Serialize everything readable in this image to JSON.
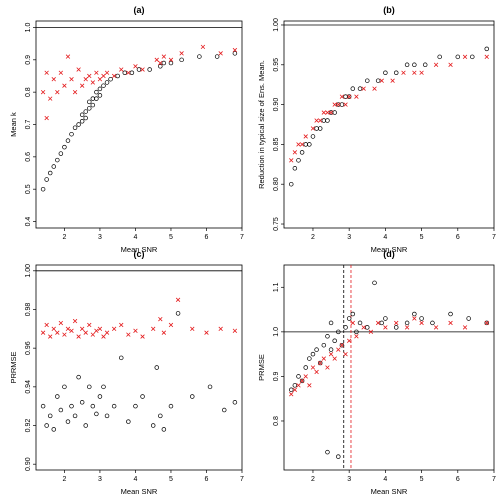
{
  "colors": {
    "black_series": "#000000",
    "red_series": "#e41a1c"
  },
  "chart_data": [
    {
      "title": "(a)",
      "type": "scatter",
      "xlabel": "Mean SNR",
      "ylabel": "Mean k",
      "xlim": [
        1.2,
        7.0
      ],
      "ylim": [
        0.38,
        1.02
      ],
      "xticks": [
        2,
        3,
        4,
        5,
        6,
        7
      ],
      "yticks": [
        0.4,
        0.5,
        0.6,
        0.7,
        0.8,
        0.9,
        1.0
      ],
      "hlines": [
        1.0
      ],
      "vlines": [],
      "series": [
        {
          "marker": "circle",
          "color": "#000000",
          "x": [
            1.4,
            1.5,
            1.6,
            1.7,
            1.8,
            1.9,
            2.0,
            2.1,
            2.2,
            2.3,
            2.4,
            2.5,
            2.5,
            2.6,
            2.6,
            2.7,
            2.7,
            2.8,
            2.8,
            2.9,
            2.9,
            3.0,
            3.0,
            3.1,
            3.2,
            3.3,
            3.5,
            3.7,
            3.9,
            4.1,
            4.4,
            4.7,
            4.8,
            5.0,
            5.3,
            5.8,
            6.3,
            6.8
          ],
          "y": [
            0.5,
            0.53,
            0.55,
            0.57,
            0.59,
            0.61,
            0.63,
            0.65,
            0.67,
            0.69,
            0.7,
            0.71,
            0.73,
            0.72,
            0.74,
            0.75,
            0.77,
            0.76,
            0.78,
            0.78,
            0.8,
            0.79,
            0.81,
            0.82,
            0.83,
            0.84,
            0.85,
            0.86,
            0.86,
            0.87,
            0.87,
            0.88,
            0.89,
            0.89,
            0.9,
            0.91,
            0.91,
            0.92
          ]
        },
        {
          "marker": "cross",
          "color": "#e41a1c",
          "x": [
            1.4,
            1.5,
            1.5,
            1.6,
            1.7,
            1.8,
            1.9,
            2.0,
            2.1,
            2.2,
            2.3,
            2.4,
            2.5,
            2.6,
            2.7,
            2.8,
            2.9,
            3.0,
            3.1,
            3.2,
            3.4,
            3.6,
            3.8,
            4.0,
            4.2,
            4.6,
            4.7,
            4.8,
            5.0,
            5.3,
            5.9,
            6.4,
            6.8
          ],
          "y": [
            0.8,
            0.86,
            0.72,
            0.78,
            0.84,
            0.8,
            0.86,
            0.82,
            0.91,
            0.84,
            0.8,
            0.87,
            0.82,
            0.84,
            0.85,
            0.83,
            0.86,
            0.84,
            0.85,
            0.86,
            0.85,
            0.87,
            0.86,
            0.88,
            0.87,
            0.9,
            0.89,
            0.91,
            0.9,
            0.92,
            0.94,
            0.92,
            0.93
          ]
        }
      ]
    },
    {
      "title": "(b)",
      "type": "scatter",
      "xlabel": "Mean SNR",
      "ylabel": "Reduction in typical size of Ens. Mean.",
      "xlim": [
        1.2,
        7.0
      ],
      "ylim": [
        0.745,
        1.005
      ],
      "xticks": [
        2,
        3,
        4,
        5,
        6,
        7
      ],
      "yticks": [
        0.75,
        0.8,
        0.85,
        0.9,
        0.95,
        1.0
      ],
      "hlines": [
        1.0
      ],
      "vlines": [],
      "series": [
        {
          "marker": "circle",
          "color": "#000000",
          "x": [
            1.4,
            1.5,
            1.6,
            1.7,
            1.8,
            1.9,
            2.0,
            2.1,
            2.2,
            2.3,
            2.4,
            2.5,
            2.6,
            2.7,
            2.8,
            2.9,
            3.0,
            3.1,
            3.3,
            3.5,
            3.8,
            4.0,
            4.3,
            4.6,
            4.8,
            5.1,
            5.5,
            6.0,
            6.4,
            6.8
          ],
          "y": [
            0.8,
            0.82,
            0.83,
            0.84,
            0.85,
            0.85,
            0.86,
            0.87,
            0.87,
            0.88,
            0.88,
            0.89,
            0.89,
            0.9,
            0.9,
            0.91,
            0.91,
            0.92,
            0.92,
            0.93,
            0.93,
            0.94,
            0.94,
            0.95,
            0.95,
            0.95,
            0.96,
            0.96,
            0.96,
            0.97
          ]
        },
        {
          "marker": "cross",
          "color": "#e41a1c",
          "x": [
            1.4,
            1.5,
            1.6,
            1.7,
            1.8,
            2.0,
            2.1,
            2.2,
            2.3,
            2.4,
            2.5,
            2.6,
            2.7,
            2.8,
            2.9,
            3.0,
            3.2,
            3.4,
            3.7,
            3.9,
            4.2,
            4.5,
            4.8,
            5.0,
            5.4,
            5.8,
            6.2,
            6.8
          ],
          "y": [
            0.83,
            0.84,
            0.85,
            0.85,
            0.86,
            0.87,
            0.88,
            0.88,
            0.89,
            0.89,
            0.89,
            0.9,
            0.9,
            0.91,
            0.9,
            0.91,
            0.91,
            0.92,
            0.92,
            0.93,
            0.93,
            0.94,
            0.94,
            0.94,
            0.95,
            0.95,
            0.96,
            0.96
          ]
        }
      ]
    },
    {
      "title": "(c)",
      "type": "scatter",
      "xlabel": "Mean SNR",
      "ylabel": "PRRMSE",
      "xlim": [
        1.2,
        7.0
      ],
      "ylim": [
        0.897,
        1.003
      ],
      "xticks": [
        2,
        3,
        4,
        5,
        6,
        7
      ],
      "yticks": [
        0.9,
        0.92,
        0.94,
        0.96,
        0.98,
        1.0
      ],
      "hlines": [
        1.0
      ],
      "vlines": [],
      "series": [
        {
          "marker": "circle",
          "color": "#000000",
          "x": [
            1.4,
            1.5,
            1.6,
            1.7,
            1.8,
            1.9,
            2.0,
            2.1,
            2.2,
            2.3,
            2.4,
            2.5,
            2.6,
            2.7,
            2.8,
            2.9,
            3.0,
            3.1,
            3.2,
            3.4,
            3.6,
            3.8,
            4.0,
            4.2,
            4.5,
            4.6,
            4.7,
            4.8,
            5.0,
            5.2,
            5.6,
            6.1,
            6.5,
            6.8
          ],
          "y": [
            0.93,
            0.92,
            0.925,
            0.918,
            0.935,
            0.928,
            0.94,
            0.922,
            0.93,
            0.925,
            0.945,
            0.932,
            0.92,
            0.94,
            0.93,
            0.926,
            0.935,
            0.94,
            0.925,
            0.93,
            0.955,
            0.922,
            0.93,
            0.935,
            0.92,
            0.95,
            0.925,
            0.918,
            0.93,
            0.978,
            0.935,
            0.94,
            0.928,
            0.932
          ]
        },
        {
          "marker": "cross",
          "color": "#e41a1c",
          "x": [
            1.4,
            1.5,
            1.6,
            1.7,
            1.8,
            1.9,
            2.0,
            2.1,
            2.2,
            2.3,
            2.4,
            2.5,
            2.6,
            2.7,
            2.8,
            2.9,
            3.0,
            3.1,
            3.2,
            3.4,
            3.6,
            3.8,
            4.0,
            4.2,
            4.5,
            4.7,
            4.8,
            5.0,
            5.2,
            5.6,
            6.0,
            6.4,
            6.8
          ],
          "y": [
            0.968,
            0.972,
            0.966,
            0.97,
            0.968,
            0.973,
            0.967,
            0.97,
            0.969,
            0.974,
            0.966,
            0.97,
            0.968,
            0.972,
            0.967,
            0.969,
            0.97,
            0.966,
            0.968,
            0.97,
            0.972,
            0.967,
            0.969,
            0.966,
            0.97,
            0.975,
            0.968,
            0.972,
            0.985,
            0.97,
            0.968,
            0.97,
            0.969
          ]
        }
      ]
    },
    {
      "title": "(d)",
      "type": "scatter",
      "xlabel": "Mean SNR",
      "ylabel": "PRMSE",
      "xlim": [
        1.2,
        7.0
      ],
      "ylim": [
        0.69,
        1.15
      ],
      "xticks": [
        2,
        3,
        4,
        5,
        6,
        7
      ],
      "yticks": [
        0.8,
        0.9,
        1.0,
        1.1
      ],
      "hlines": [
        1.0
      ],
      "vlines": [
        2.85,
        3.05
      ],
      "series": [
        {
          "marker": "circle",
          "color": "#000000",
          "x": [
            1.4,
            1.5,
            1.6,
            1.7,
            1.8,
            1.9,
            2.0,
            2.1,
            2.2,
            2.3,
            2.4,
            2.5,
            2.5,
            2.6,
            2.7,
            2.8,
            2.9,
            3.0,
            3.1,
            3.2,
            3.3,
            3.5,
            3.7,
            3.9,
            4.0,
            4.3,
            4.6,
            4.8,
            5.0,
            5.3,
            5.8,
            6.3,
            6.8,
            2.4,
            2.7
          ],
          "y": [
            0.87,
            0.88,
            0.9,
            0.89,
            0.92,
            0.94,
            0.95,
            0.96,
            0.93,
            0.97,
            0.99,
            0.96,
            1.02,
            0.98,
            1.0,
            0.97,
            1.01,
            1.03,
            1.04,
            1.0,
            1.02,
            1.01,
            1.11,
            1.02,
            1.03,
            1.01,
            1.02,
            1.04,
            1.03,
            1.02,
            1.04,
            1.03,
            1.02,
            0.73,
            0.72
          ]
        },
        {
          "marker": "cross",
          "color": "#e41a1c",
          "x": [
            1.4,
            1.5,
            1.6,
            1.7,
            1.8,
            1.9,
            2.0,
            2.1,
            2.2,
            2.3,
            2.4,
            2.5,
            2.6,
            2.7,
            2.8,
            2.9,
            3.0,
            3.1,
            3.2,
            3.4,
            3.6,
            3.8,
            4.0,
            4.3,
            4.6,
            4.8,
            5.0,
            5.4,
            5.8,
            6.2,
            6.8
          ],
          "y": [
            0.86,
            0.87,
            0.88,
            0.89,
            0.9,
            0.88,
            0.92,
            0.91,
            0.93,
            0.94,
            0.92,
            0.95,
            0.94,
            0.96,
            0.97,
            0.95,
            0.98,
            1.02,
            0.99,
            1.01,
            1.0,
            1.02,
            1.01,
            1.02,
            1.01,
            1.03,
            1.02,
            1.01,
            1.02,
            1.01,
            1.02
          ]
        }
      ]
    }
  ]
}
